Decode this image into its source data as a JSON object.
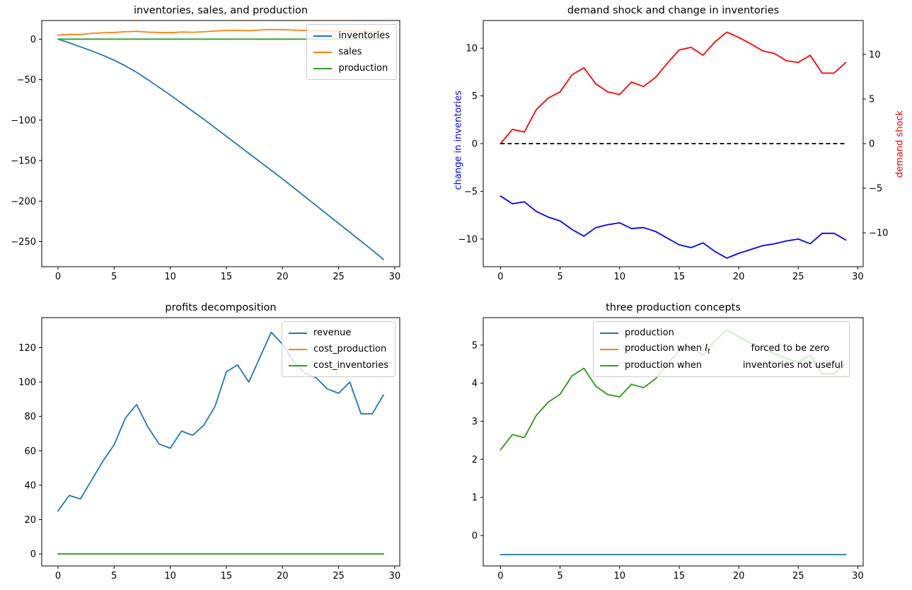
{
  "figure": {
    "background": "#ffffff",
    "colors": {
      "tab_blue": "#1f77b4",
      "tab_orange": "#ff7f0e",
      "tab_green": "#2ca02c",
      "pure_blue": "#0000ff",
      "pure_red": "#ff0000",
      "black": "#000000"
    }
  },
  "chart_data": [
    {
      "type": "line",
      "title": "inventories, sales, and production",
      "xlabel": "",
      "ylabel": "",
      "grid": false,
      "legend_position": "upper right",
      "xlim": [
        -1.45,
        30.45
      ],
      "ylim": [
        -281,
        23
      ],
      "xticks": [
        0,
        5,
        10,
        15,
        20,
        25,
        30
      ],
      "yticks": [
        0,
        -50,
        -100,
        -150,
        -200,
        -250
      ],
      "x": [
        0,
        1,
        2,
        3,
        4,
        5,
        6,
        7,
        8,
        9,
        10,
        11,
        12,
        13,
        14,
        15,
        16,
        17,
        18,
        19,
        20,
        21,
        22,
        23,
        24,
        25,
        26,
        27,
        28,
        29
      ],
      "series": [
        {
          "name": "inventories",
          "color": "#1f77b4",
          "values": [
            0,
            -4.5,
            -9.5,
            -14.5,
            -20,
            -26,
            -33,
            -41,
            -50,
            -59.5,
            -69,
            -79,
            -89,
            -99,
            -109.5,
            -120,
            -130.5,
            -141,
            -151.5,
            -162,
            -172.5,
            -183.5,
            -194.5,
            -205.5,
            -216.5,
            -227.5,
            -238.5,
            -249.5,
            -260.5,
            -272
          ]
        },
        {
          "name": "sales",
          "color": "#ff7f0e",
          "values": [
            5,
            5.9,
            5.7,
            7.1,
            7.8,
            8.2,
            9.2,
            9.7,
            8.7,
            8.2,
            8,
            8.8,
            8.5,
            9.1,
            10,
            10.8,
            10.9,
            10.4,
            11.3,
            12,
            11.7,
            11.2,
            10.7,
            10.6,
            10.1,
            10,
            10.4,
            9.3,
            9.3,
            10
          ]
        },
        {
          "name": "production",
          "color": "#2ca02c",
          "values": [
            0,
            0,
            0,
            0,
            0,
            0,
            0,
            0,
            0,
            0,
            0,
            0,
            0,
            0,
            0,
            0,
            0,
            0,
            0,
            0,
            0,
            0,
            0,
            0,
            0,
            0,
            0,
            0,
            0,
            0
          ]
        }
      ]
    },
    {
      "type": "line",
      "title": "demand shock and change in inventories",
      "ylabel": "change in inventories",
      "ylabel_color": "#0000ff",
      "grid": false,
      "legend_position": "none",
      "xlim": [
        -1.45,
        30.45
      ],
      "ylim": [
        -12.9,
        12.9
      ],
      "xticks": [
        0,
        5,
        10,
        15,
        20,
        25,
        30
      ],
      "yticks": [
        10,
        5,
        0,
        -5,
        -10
      ],
      "y2": {
        "label": "demand shock",
        "label_color": "#ff0000",
        "ylim": [
          -13.8,
          13.8
        ],
        "yticks": [
          10,
          5,
          0,
          -5,
          -10
        ]
      },
      "zero_line": {
        "y": 0,
        "x_start": 0,
        "x_end": 29,
        "color": "#000000",
        "style": "dashed"
      },
      "x": [
        0,
        1,
        2,
        3,
        4,
        5,
        6,
        7,
        8,
        9,
        10,
        11,
        12,
        13,
        14,
        15,
        16,
        17,
        18,
        19,
        20,
        21,
        22,
        23,
        24,
        25,
        26,
        27,
        28,
        29
      ],
      "series": [
        {
          "name": "change in inventories",
          "axis": "left",
          "color": "#0000ff",
          "values": [
            -5.5,
            -6.3,
            -6.1,
            -7.1,
            -7.7,
            -8.1,
            -9,
            -9.7,
            -8.8,
            -8.5,
            -8.3,
            -8.9,
            -8.8,
            -9.2,
            -9.9,
            -10.6,
            -10.9,
            -10.4,
            -11.3,
            -12,
            -11.5,
            -11.1,
            -10.7,
            -10.5,
            -10.2,
            -10,
            -10.5,
            -9.4,
            -9.4,
            -10.1
          ]
        },
        {
          "name": "demand shock",
          "axis": "right",
          "color": "#ff0000",
          "values": [
            0,
            1.6,
            1.3,
            3.8,
            5.1,
            5.8,
            7.7,
            8.5,
            6.7,
            5.8,
            5.5,
            6.9,
            6.4,
            7.4,
            9,
            10.5,
            10.8,
            9.9,
            11.4,
            12.5,
            11.9,
            11.2,
            10.4,
            10.1,
            9.3,
            9.1,
            9.9,
            7.9,
            7.9,
            9.1
          ]
        }
      ]
    },
    {
      "type": "line",
      "title": "profits decomposition",
      "grid": false,
      "legend_position": "upper right",
      "xlim": [
        -1.45,
        30.45
      ],
      "ylim": [
        -7,
        137.5
      ],
      "xticks": [
        0,
        5,
        10,
        15,
        20,
        25,
        30
      ],
      "yticks": [
        0,
        20,
        40,
        60,
        80,
        100,
        120
      ],
      "x": [
        0,
        1,
        2,
        3,
        4,
        5,
        6,
        7,
        8,
        9,
        10,
        11,
        12,
        13,
        14,
        15,
        16,
        17,
        18,
        19,
        20,
        21,
        22,
        23,
        24,
        25,
        26,
        27,
        28,
        29
      ],
      "series": [
        {
          "name": "revenue",
          "color": "#1f77b4",
          "values": [
            25,
            34,
            32,
            43,
            54,
            63.5,
            79,
            87,
            74,
            64,
            61.5,
            71.5,
            69,
            75,
            86,
            106,
            110,
            100,
            114.5,
            129,
            122,
            112,
            105,
            102.5,
            96,
            93.5,
            100,
            81.5,
            81.5,
            92.5
          ]
        },
        {
          "name": "cost_production",
          "color": "#ff7f0e",
          "values": [
            0,
            0,
            0,
            0,
            0,
            0,
            0,
            0,
            0,
            0,
            0,
            0,
            0,
            0,
            0,
            0,
            0,
            0,
            0,
            0,
            0,
            0,
            0,
            0,
            0,
            0,
            0,
            0,
            0,
            0
          ]
        },
        {
          "name": "cost_inventories",
          "color": "#2ca02c",
          "values": [
            0,
            0,
            0,
            0,
            0,
            0,
            0,
            0,
            0,
            0,
            0,
            0,
            0,
            0,
            0,
            0,
            0,
            0,
            0,
            0,
            0,
            0,
            0,
            0,
            0,
            0,
            0,
            0,
            0,
            0
          ]
        }
      ]
    },
    {
      "type": "line",
      "title": "three production concepts",
      "grid": false,
      "legend_position": "upper left wide",
      "xlim": [
        -1.45,
        30.45
      ],
      "ylim": [
        -0.8,
        5.72
      ],
      "xticks": [
        0,
        5,
        10,
        15,
        20,
        25,
        30
      ],
      "yticks": [
        0,
        1,
        2,
        3,
        4,
        5
      ],
      "x": [
        0,
        1,
        2,
        3,
        4,
        5,
        6,
        7,
        8,
        9,
        10,
        11,
        12,
        13,
        14,
        15,
        16,
        17,
        18,
        19,
        20,
        21,
        22,
        23,
        24,
        25,
        26,
        27,
        28,
        29
      ],
      "series": [
        {
          "name": "production",
          "color": "#1f77b4",
          "legend_parts": [
            {
              "t": "production"
            }
          ],
          "values": [
            -0.5,
            -0.5,
            -0.5,
            -0.5,
            -0.5,
            -0.5,
            -0.5,
            -0.5,
            -0.5,
            -0.5,
            -0.5,
            -0.5,
            -0.5,
            -0.5,
            -0.5,
            -0.5,
            -0.5,
            -0.5,
            -0.5,
            -0.5,
            -0.5,
            -0.5,
            -0.5,
            -0.5,
            -0.5,
            -0.5,
            -0.5,
            -0.5,
            -0.5,
            -0.5
          ]
        },
        {
          "name": "production when It forced to be zero",
          "color": "#ff7f0e",
          "legend_parts": [
            {
              "t": "production when "
            },
            {
              "t": "I",
              "s": "i"
            },
            {
              "t": "t",
              "s": "sub"
            },
            {
              "t": "              forced to be zero"
            }
          ],
          "values": [
            2.25,
            2.65,
            2.57,
            3.15,
            3.5,
            3.71,
            4.19,
            4.39,
            3.92,
            3.7,
            3.64,
            3.97,
            3.88,
            4.11,
            4.5,
            4.85,
            4.95,
            4.73,
            5.1,
            5.4,
            5.22,
            5.05,
            4.9,
            4.78,
            4.65,
            4.55,
            4.74,
            4.25,
            4.24,
            4.53
          ]
        },
        {
          "name": "production when inventories not useful",
          "color": "#2ca02c",
          "legend_parts": [
            {
              "t": "production when              inventories not useful"
            }
          ],
          "values": [
            2.25,
            2.65,
            2.57,
            3.15,
            3.5,
            3.71,
            4.19,
            4.39,
            3.92,
            3.7,
            3.64,
            3.97,
            3.88,
            4.11,
            4.5,
            4.85,
            4.95,
            4.73,
            5.1,
            5.4,
            5.22,
            5.05,
            4.9,
            4.78,
            4.65,
            4.55,
            4.74,
            4.25,
            4.24,
            4.53
          ]
        }
      ]
    }
  ]
}
